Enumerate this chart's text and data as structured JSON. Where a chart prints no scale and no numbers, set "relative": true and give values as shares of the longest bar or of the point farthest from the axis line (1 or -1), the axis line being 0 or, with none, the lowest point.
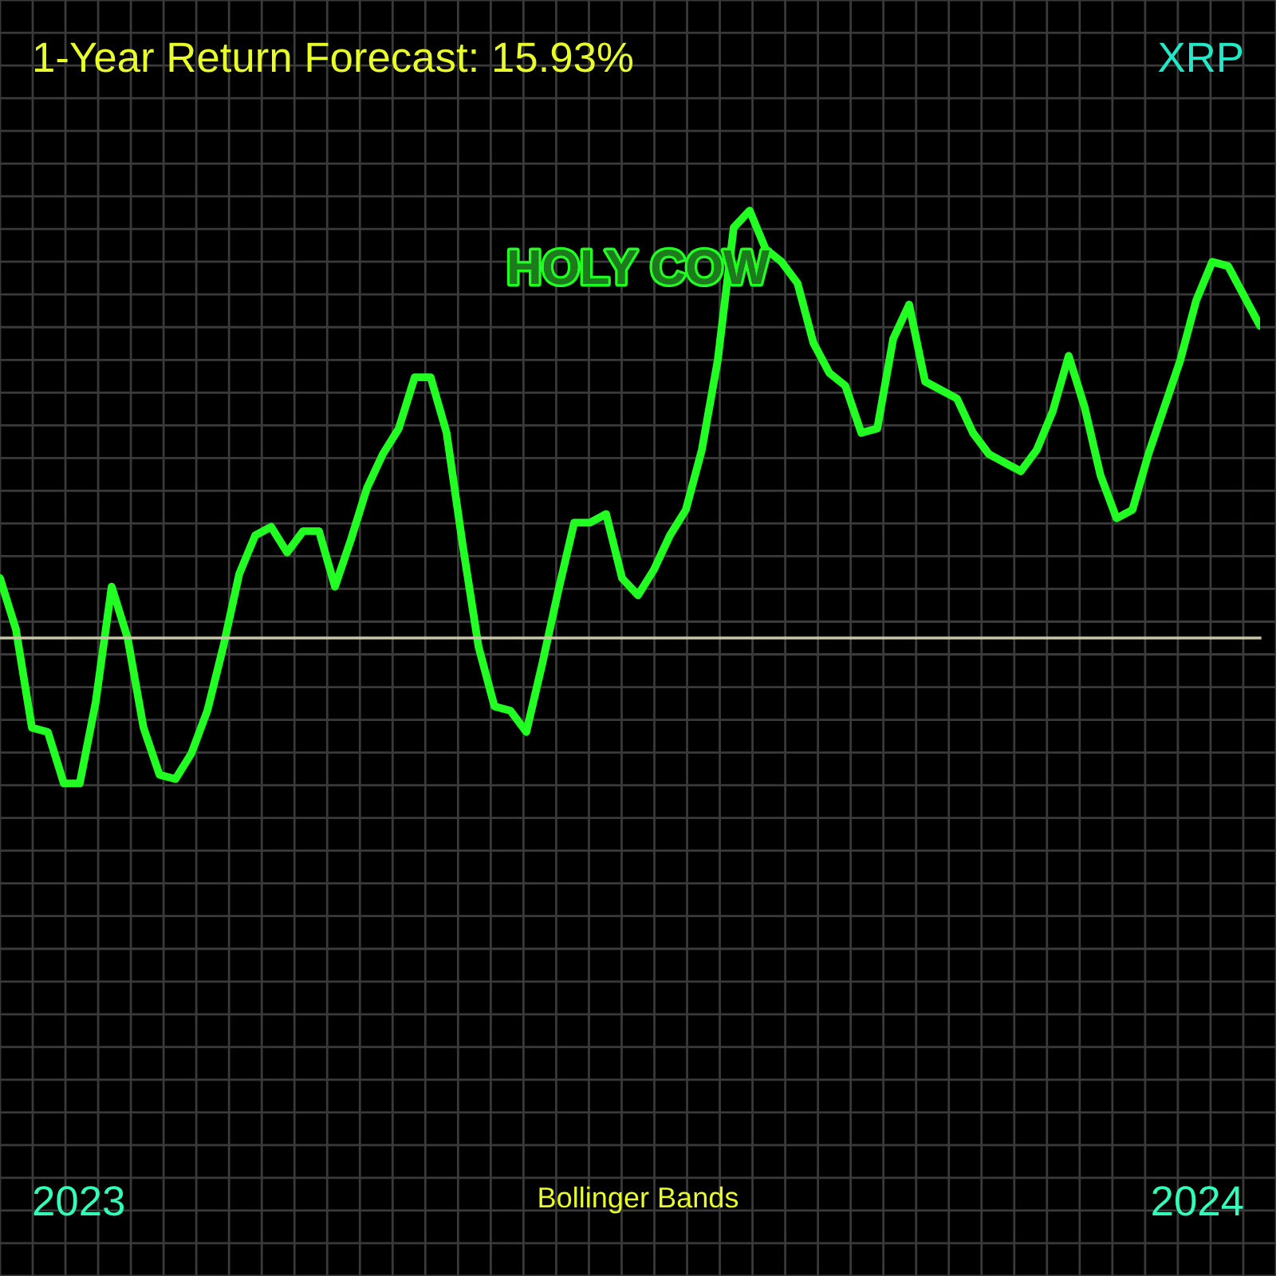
{
  "chart_data": {
    "type": "line",
    "relative": true,
    "title": "1-Year Return Forecast: 15.93%",
    "grid": true,
    "categories": [
      null,
      null,
      null,
      null,
      null,
      null,
      null,
      null,
      null,
      null,
      null,
      null,
      null,
      null,
      null,
      null,
      null,
      null,
      null,
      null,
      null,
      null,
      null,
      null,
      null,
      null,
      null,
      null,
      null,
      null,
      null,
      null,
      null,
      null,
      null,
      null,
      null,
      null,
      null,
      null,
      null,
      null,
      null,
      null,
      null,
      null,
      null,
      null,
      null,
      null,
      null,
      null,
      null,
      null,
      null,
      null,
      null,
      null,
      null,
      null,
      null,
      null,
      null,
      null,
      null,
      null,
      null,
      null,
      null,
      null,
      null,
      null,
      null,
      null,
      null,
      null,
      null,
      null,
      null,
      null
    ],
    "series": [
      {
        "color": "#22ff22",
        "values": [
          0.14,
          0.02,
          -0.21,
          -0.22,
          -0.34,
          -0.34,
          -0.15,
          0.12,
          0,
          -0.21,
          -0.32,
          -0.33,
          -0.27,
          -0.17,
          -0.02,
          0.15,
          0.24,
          0.26,
          0.2,
          0.25,
          0.25,
          0.12,
          0.23,
          0.35,
          0.43,
          0.49,
          0.61,
          0.61,
          0.48,
          0.22,
          -0.02,
          -0.16,
          -0.17,
          -0.22,
          -0.06,
          0.11,
          0.27,
          0.27,
          0.29,
          0.14,
          0.1,
          0.16,
          0.24,
          0.3,
          0.44,
          0.65,
          0.96,
          1.0,
          0.91,
          0.88,
          0.83,
          0.69,
          0.62,
          0.59,
          0.48,
          0.49,
          0.7,
          0.78,
          0.6,
          0.58,
          0.56,
          0.48,
          0.43,
          0.41,
          0.39,
          0.44,
          0.53,
          0.66,
          0.54,
          0.38,
          0.28,
          0.3,
          0.43,
          0.54,
          0.65,
          0.79,
          0.88,
          0.87,
          0.8,
          0.73
        ]
      }
    ],
    "annotations": [
      "XRP",
      "HOLY COW",
      "2023",
      "Bollinger Bands",
      "2024"
    ]
  }
}
